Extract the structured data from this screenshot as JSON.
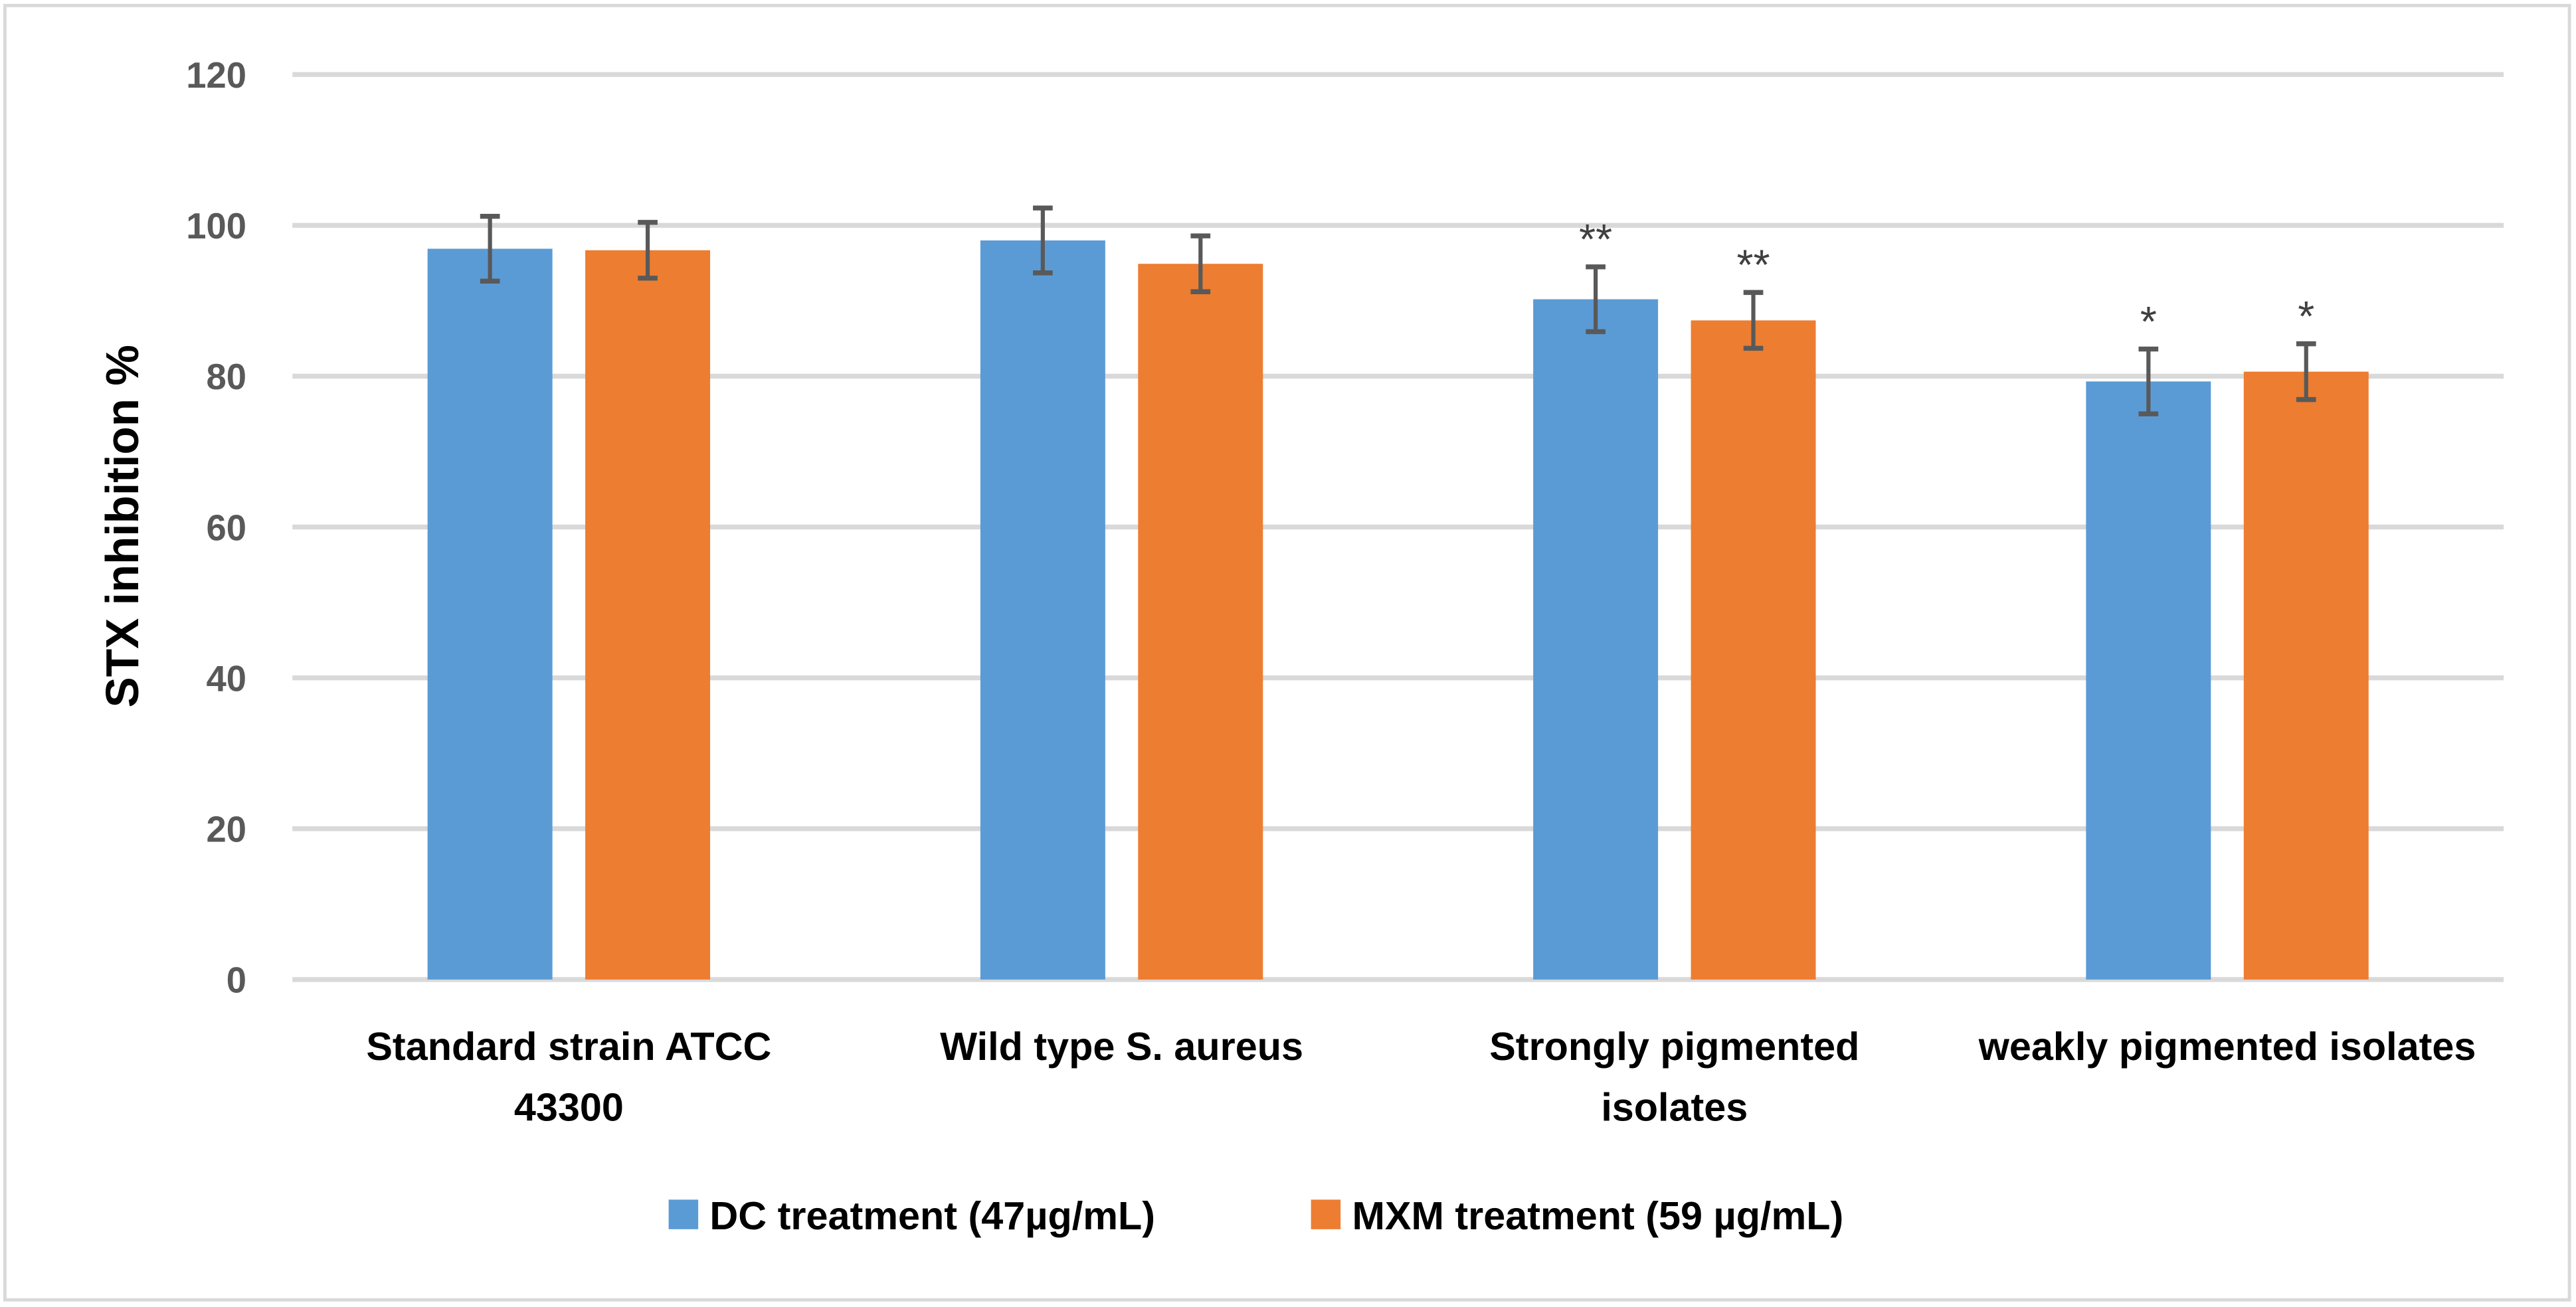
{
  "chart_data": {
    "type": "bar",
    "title": "",
    "xlabel": "",
    "ylabel": "STX inhibition %",
    "ylim": [
      0,
      120
    ],
    "yticks": [
      0,
      20,
      40,
      60,
      80,
      100,
      120
    ],
    "grid": true,
    "legend_position": "bottom",
    "categories": [
      [
        "Standard strain ATCC",
        "43300"
      ],
      [
        "Wild type S. aureus"
      ],
      [
        "Strongly pigmented",
        "isolates"
      ],
      [
        "weakly pigmented isolates"
      ]
    ],
    "series": [
      {
        "name": "DC treatment (47µg/mL)",
        "color": "#5B9BD5",
        "values": [
          96.9,
          98.0,
          90.2,
          79.3
        ],
        "error": [
          4.3,
          4.3,
          4.3,
          4.3
        ],
        "annotations": [
          "",
          "",
          "**",
          "*"
        ]
      },
      {
        "name": "MXM treatment (59 µg/mL)",
        "color": "#ED7D31",
        "values": [
          96.7,
          94.9,
          87.4,
          80.6
        ],
        "error": [
          3.7,
          3.7,
          3.7,
          3.7
        ],
        "annotations": [
          "",
          "",
          "**",
          "*"
        ]
      }
    ],
    "error_bar_color": "#595959",
    "grid_color": "#D9D9D9"
  }
}
